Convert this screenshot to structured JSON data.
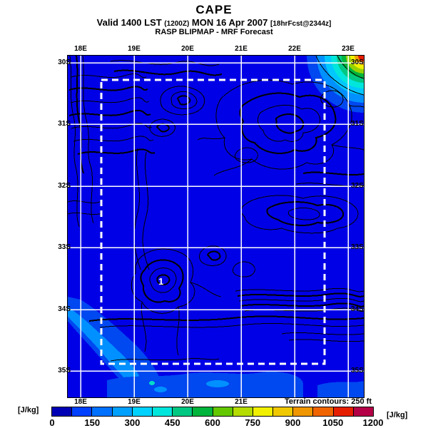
{
  "header": {
    "title": "CAPE",
    "valid_main_1": "Valid 1400 LST ",
    "valid_small_1": "(1200Z)",
    "valid_main_2": " MON 16 Apr 2007 ",
    "valid_small_2": "[18hrFcst@2344z]",
    "model_line": "RASP BLIPMAP - MRF Forecast"
  },
  "map": {
    "lon_labels_top": [
      "18E",
      "19E",
      "20E",
      "21E",
      "22E",
      "23E"
    ],
    "lon_labels_bottom": [
      "18E",
      "19E",
      "20E",
      "21E"
    ],
    "lat_labels_left": [
      "30S",
      "31S",
      "32S",
      "33S",
      "34S",
      "35S"
    ],
    "lat_labels_right": [
      "30S",
      "31S",
      "32S",
      "33S",
      "34S",
      "35S"
    ],
    "marker_label": "1",
    "terrain_note": "Terrain contours: 250 ft",
    "colors": {
      "sea_background": "#0000E6",
      "grid_lines": "#FFFFFF",
      "terrain_contours": "#000000",
      "nest_boundary": "#FFFFFF",
      "hotspot_max": "#E61E00"
    }
  },
  "colorbar": {
    "unit_left": "[J/kg]",
    "unit_right": "[J/kg]",
    "tick_labels": [
      "0",
      "150",
      "300",
      "450",
      "600",
      "750",
      "900",
      "1050",
      "1200"
    ],
    "value_min": 0,
    "value_max": 1200,
    "segment_step": 75,
    "segment_colors": [
      "#0000B4",
      "#0040FF",
      "#0070FF",
      "#00A0FF",
      "#00D2FF",
      "#00E6DC",
      "#00C882",
      "#00B43C",
      "#64C800",
      "#B4DC00",
      "#F0F000",
      "#F0C800",
      "#F09600",
      "#F06400",
      "#E61E00",
      "#B40046"
    ]
  }
}
